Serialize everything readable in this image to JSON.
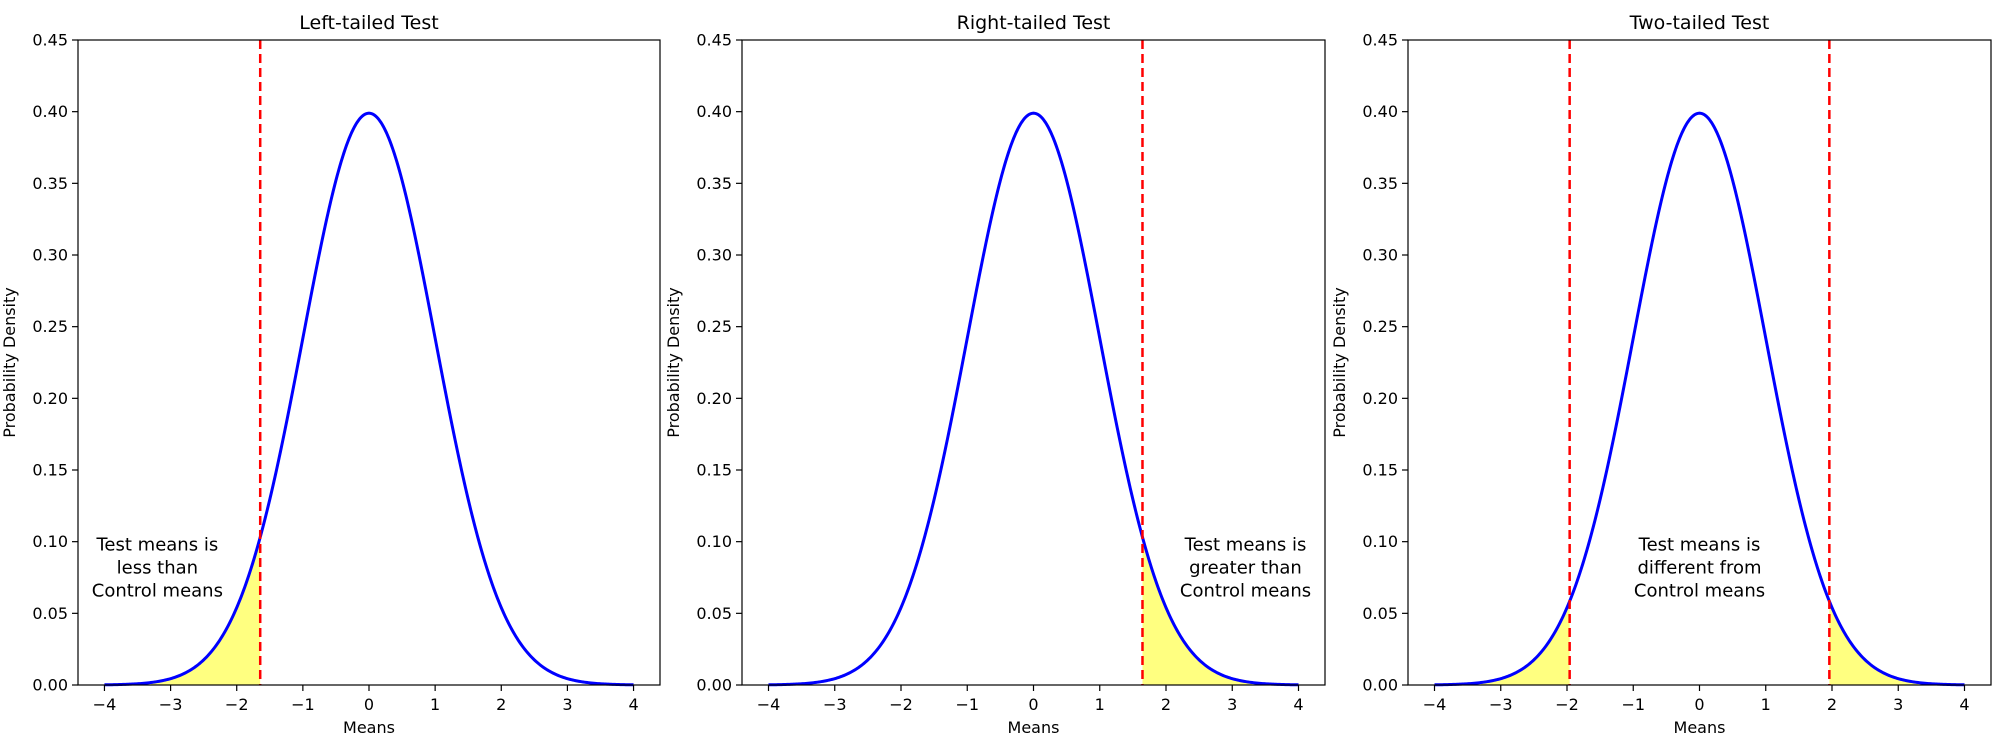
{
  "chart_data": [
    {
      "type": "area",
      "title": "Left-tailed Test",
      "xlabel": "Means",
      "ylabel": "Probability Density",
      "xlim": [
        -4.4,
        4.4
      ],
      "ylim": [
        0,
        0.45
      ],
      "xticks": [
        -4,
        -3,
        -2,
        -1,
        0,
        1,
        2,
        3,
        4
      ],
      "xtick_labels": [
        "−4",
        "−3",
        "−2",
        "−1",
        "0",
        "1",
        "2",
        "3",
        "4"
      ],
      "yticks": [
        0.0,
        0.05,
        0.1,
        0.15,
        0.2,
        0.25,
        0.3,
        0.35,
        0.4,
        0.45
      ],
      "ytick_labels": [
        "0.00",
        "0.05",
        "0.10",
        "0.15",
        "0.20",
        "0.25",
        "0.30",
        "0.35",
        "0.40",
        "0.45"
      ],
      "curve": {
        "distribution": "standard normal",
        "mean": 0,
        "sd": 1,
        "x_range": [
          -4,
          4
        ],
        "color": "#0000ff"
      },
      "critical_values": [
        -1.645
      ],
      "critical_line_color": "#ff0000",
      "shaded_regions": [
        [
          -3.3,
          -1.645
        ]
      ],
      "shade_color": "#ffff80",
      "annotation": {
        "lines": [
          "Test means is",
          "less than",
          "Control means"
        ],
        "x": -3.2,
        "y": 0.082
      }
    },
    {
      "type": "area",
      "title": "Right-tailed Test",
      "xlabel": "Means",
      "ylabel": "Probability Density",
      "xlim": [
        -4.4,
        4.4
      ],
      "ylim": [
        0,
        0.45
      ],
      "xticks": [
        -4,
        -3,
        -2,
        -1,
        0,
        1,
        2,
        3,
        4
      ],
      "xtick_labels": [
        "−4",
        "−3",
        "−2",
        "−1",
        "0",
        "1",
        "2",
        "3",
        "4"
      ],
      "yticks": [
        0.0,
        0.05,
        0.1,
        0.15,
        0.2,
        0.25,
        0.3,
        0.35,
        0.4,
        0.45
      ],
      "ytick_labels": [
        "0.00",
        "0.05",
        "0.10",
        "0.15",
        "0.20",
        "0.25",
        "0.30",
        "0.35",
        "0.40",
        "0.45"
      ],
      "curve": {
        "distribution": "standard normal",
        "mean": 0,
        "sd": 1,
        "x_range": [
          -4,
          4
        ],
        "color": "#0000ff"
      },
      "critical_values": [
        1.645
      ],
      "critical_line_color": "#ff0000",
      "shaded_regions": [
        [
          1.645,
          3.3
        ]
      ],
      "shade_color": "#ffff80",
      "annotation": {
        "lines": [
          "Test means is",
          "greater than",
          "Control means"
        ],
        "x": 3.2,
        "y": 0.082
      }
    },
    {
      "type": "area",
      "title": "Two-tailed Test",
      "xlabel": "Means",
      "ylabel": "Probability Density",
      "xlim": [
        -4.4,
        4.4
      ],
      "ylim": [
        0,
        0.45
      ],
      "xticks": [
        -4,
        -3,
        -2,
        -1,
        0,
        1,
        2,
        3,
        4
      ],
      "xtick_labels": [
        "−4",
        "−3",
        "−2",
        "−1",
        "0",
        "1",
        "2",
        "3",
        "4"
      ],
      "yticks": [
        0.0,
        0.05,
        0.1,
        0.15,
        0.2,
        0.25,
        0.3,
        0.35,
        0.4,
        0.45
      ],
      "ytick_labels": [
        "0.00",
        "0.05",
        "0.10",
        "0.15",
        "0.20",
        "0.25",
        "0.30",
        "0.35",
        "0.40",
        "0.45"
      ],
      "curve": {
        "distribution": "standard normal",
        "mean": 0,
        "sd": 1,
        "x_range": [
          -4,
          4
        ],
        "color": "#0000ff"
      },
      "critical_values": [
        -1.96,
        1.96
      ],
      "critical_line_color": "#ff0000",
      "shaded_regions": [
        [
          -3.3,
          -1.96
        ],
        [
          1.96,
          3.3
        ]
      ],
      "shade_color": "#ffff80",
      "annotation": {
        "lines": [
          "Test means is",
          "different from",
          "Control means"
        ],
        "x": 0,
        "y": 0.082
      }
    }
  ]
}
